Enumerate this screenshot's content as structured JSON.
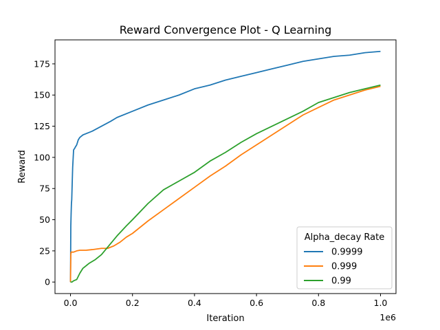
{
  "chart_data": {
    "type": "line",
    "title": "Reward Convergence Plot - Q Learning",
    "xlabel": "Iteration",
    "ylabel": "Reward",
    "x_offset_label": "1e6",
    "xlim": [
      -0.05,
      1.05
    ],
    "ylim": [
      -9.25,
      194.25
    ],
    "x_ticks": [
      0.0,
      0.2,
      0.4,
      0.6,
      0.8,
      1.0
    ],
    "x_tick_labels": [
      "0.0",
      "0.2",
      "0.4",
      "0.6",
      "0.8",
      "1.0"
    ],
    "y_ticks": [
      0,
      25,
      50,
      75,
      100,
      125,
      150,
      175
    ],
    "y_tick_labels": [
      "0",
      "25",
      "50",
      "75",
      "100",
      "125",
      "150",
      "175"
    ],
    "grid": false,
    "legend": {
      "title": "Alpha_decay Rate",
      "placement": "bottom-right"
    },
    "series": [
      {
        "name": "0.9999",
        "color": "#1f77b4",
        "x": [
          0,
          0.001,
          0.002,
          0.003,
          0.004,
          0.005,
          0.007,
          0.01,
          0.013,
          0.015,
          0.02,
          0.025,
          0.03,
          0.04,
          0.05,
          0.07,
          0.1,
          0.13,
          0.15,
          0.2,
          0.25,
          0.3,
          0.35,
          0.4,
          0.45,
          0.5,
          0.55,
          0.6,
          0.65,
          0.7,
          0.75,
          0.8,
          0.85,
          0.9,
          0.95,
          1.0
        ],
        "y": [
          0,
          45,
          55,
          63,
          66,
          75,
          92,
          106,
          107,
          108,
          110,
          114,
          116,
          118,
          119,
          121,
          125,
          129,
          132,
          137,
          142,
          146,
          150,
          155,
          158,
          162,
          165,
          168,
          171,
          174,
          177,
          179,
          181,
          182,
          184,
          185
        ]
      },
      {
        "name": "0.999",
        "color": "#ff7f0e",
        "x": [
          0,
          0.001,
          0.002,
          0.01,
          0.02,
          0.03,
          0.05,
          0.07,
          0.1,
          0.12,
          0.14,
          0.16,
          0.18,
          0.2,
          0.25,
          0.3,
          0.35,
          0.4,
          0.45,
          0.5,
          0.55,
          0.6,
          0.65,
          0.7,
          0.75,
          0.8,
          0.85,
          0.9,
          0.95,
          1.0
        ],
        "y": [
          0,
          22,
          24,
          24,
          25,
          25.5,
          25.5,
          26,
          27,
          27,
          29,
          32,
          36,
          39,
          49,
          58,
          67,
          76,
          85,
          93,
          102,
          110,
          118,
          126,
          134,
          140,
          146,
          150,
          154,
          157
        ]
      },
      {
        "name": "0.99",
        "color": "#2ca02c",
        "x": [
          0,
          0.005,
          0.01,
          0.02,
          0.03,
          0.04,
          0.06,
          0.08,
          0.1,
          0.12,
          0.15,
          0.18,
          0.2,
          0.25,
          0.3,
          0.35,
          0.4,
          0.45,
          0.5,
          0.55,
          0.6,
          0.65,
          0.7,
          0.75,
          0.8,
          0.85,
          0.9,
          0.95,
          1.0
        ],
        "y": [
          0,
          0,
          1,
          2,
          7,
          11,
          15,
          18,
          22,
          28,
          37,
          45,
          50,
          63,
          74,
          81,
          88,
          97,
          104,
          112,
          119,
          125,
          131,
          137,
          144,
          148,
          152,
          155,
          158
        ]
      }
    ]
  }
}
